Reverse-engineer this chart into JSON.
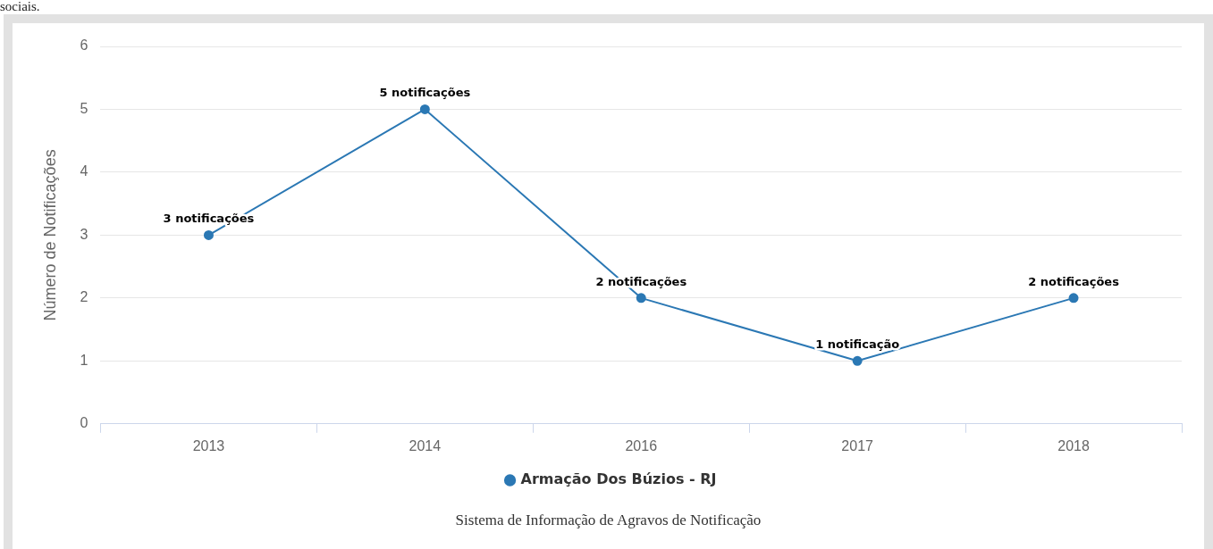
{
  "chart_data": {
    "type": "line",
    "categories": [
      "2013",
      "2014",
      "2016",
      "2017",
      "2018"
    ],
    "series": [
      {
        "name": "Armação Dos Búzios - RJ",
        "color": "#2b78b4",
        "values": [
          3,
          5,
          2,
          1,
          2
        ],
        "value_labels": [
          "3 notificações",
          "5 notificações",
          "2 notificações",
          "1 notificação",
          "2 notificações"
        ]
      }
    ],
    "ylabel": "Número de Notificações",
    "ylim": [
      0,
      6
    ],
    "yticks": [
      0,
      1,
      2,
      3,
      4,
      5,
      6
    ],
    "grid": "y",
    "legend": "bottom",
    "marker": "circle",
    "line_style": "solid",
    "annotations": [
      "sociais.",
      "Sistema de Informação de Agravos de Notificação"
    ]
  }
}
